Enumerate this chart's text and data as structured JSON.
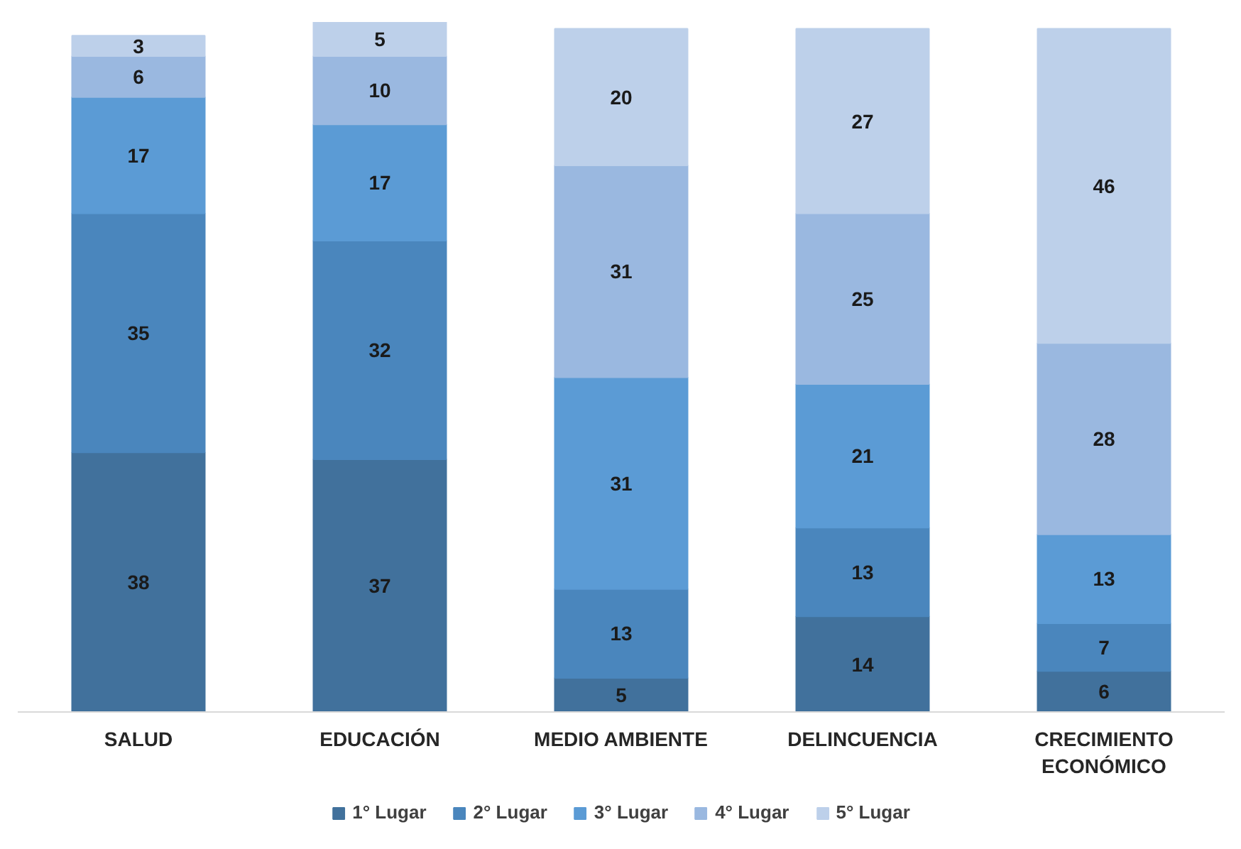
{
  "chart_data": {
    "type": "bar",
    "stacked": true,
    "data_labels": true,
    "grid": false,
    "legend": "bottom",
    "categories": [
      "SALUD",
      "EDUCACIÓN",
      "MEDIO AMBIENTE",
      "DELINCUENCIA",
      "CRECIMIENTO ECONÓMICO"
    ],
    "series": [
      {
        "name": "1° Lugar",
        "color": "#41719c",
        "values": [
          38,
          37,
          5,
          14,
          6
        ]
      },
      {
        "name": "2° Lugar",
        "color": "#4a86bd",
        "values": [
          35,
          32,
          13,
          13,
          7
        ]
      },
      {
        "name": "3° Lugar",
        "color": "#5b9bd5",
        "values": [
          17,
          17,
          31,
          21,
          13
        ]
      },
      {
        "name": "4° Lugar",
        "color": "#9ab8e0",
        "values": [
          6,
          10,
          31,
          25,
          28
        ]
      },
      {
        "name": "5° Lugar",
        "color": "#bdd0ea",
        "values": [
          3,
          5,
          20,
          27,
          46
        ]
      }
    ]
  }
}
